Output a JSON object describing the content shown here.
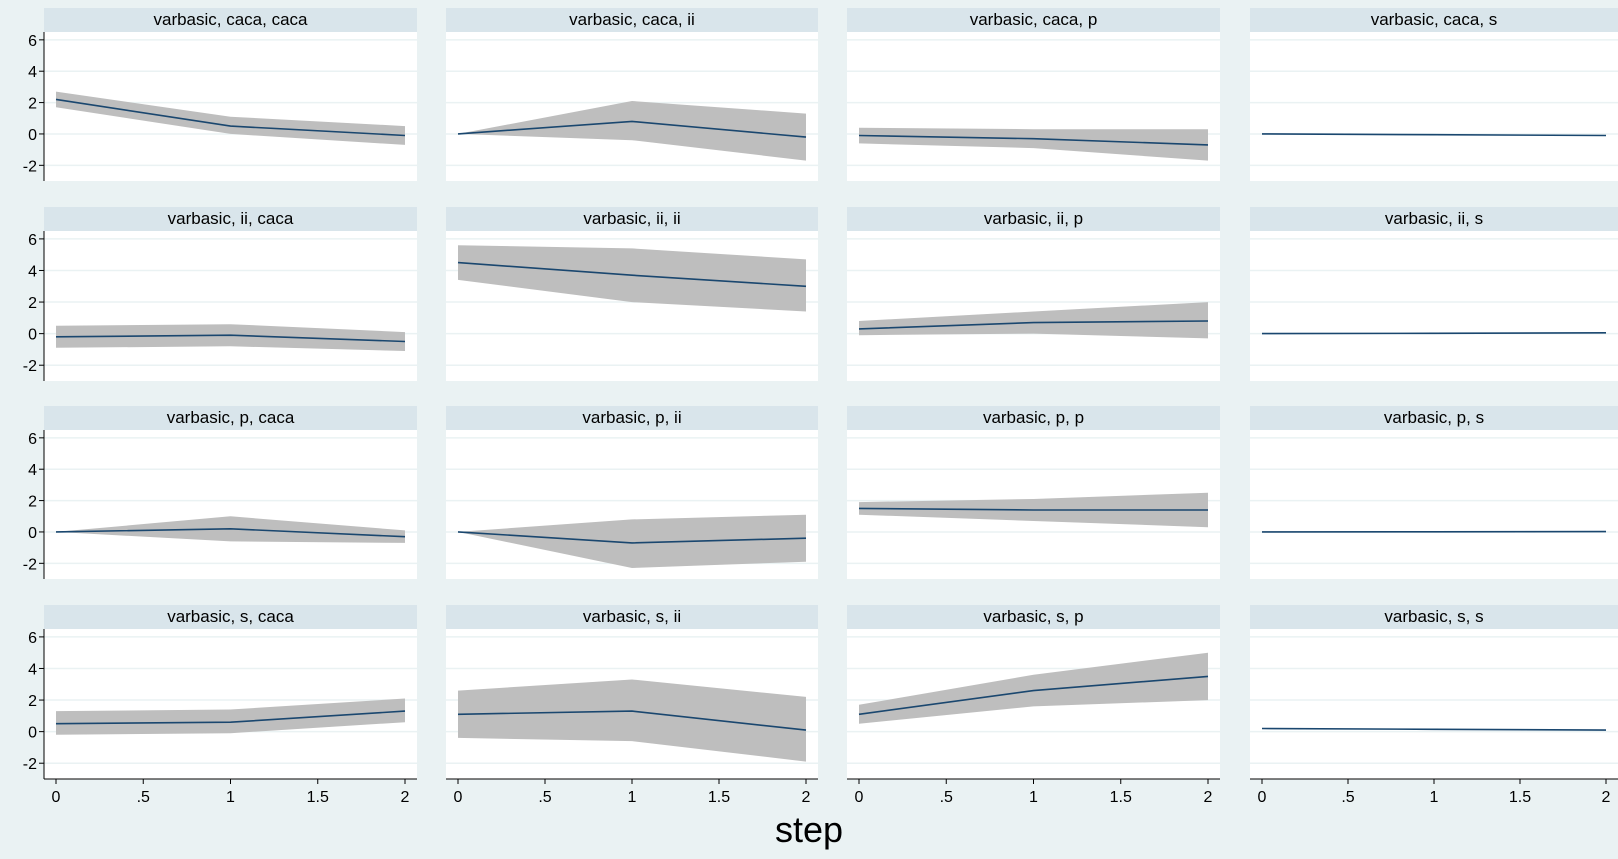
{
  "figure": {
    "x_axis_title": "step",
    "colors": {
      "background": "#eaf2f3",
      "panel": "#ffffff",
      "strip": "#d9e5eb",
      "ci_band": "#bebebe",
      "line": "#1a476f",
      "grid": "#eaf2f3"
    }
  },
  "chart_data": {
    "type": "line",
    "layout": "4x4 panel grid (impulse, response)",
    "x_ticks": [
      "0",
      ".5",
      "1",
      "1.5",
      "2"
    ],
    "y_ticks": [
      "-2",
      "0",
      "2",
      "4",
      "6"
    ],
    "xlim": [
      0,
      2
    ],
    "ylim": [
      -3,
      6.5
    ],
    "grid": true,
    "x": [
      0,
      1,
      2
    ],
    "panels": [
      {
        "title": "varbasic, caca, caca",
        "irf": [
          2.2,
          0.5,
          -0.1
        ],
        "lower": [
          1.7,
          0.0,
          -0.7
        ],
        "upper": [
          2.7,
          1.1,
          0.5
        ]
      },
      {
        "title": "varbasic, caca, ii",
        "irf": [
          0,
          0.8,
          -0.2
        ],
        "lower": [
          0,
          -0.4,
          -1.7
        ],
        "upper": [
          0,
          2.1,
          1.3
        ]
      },
      {
        "title": "varbasic, caca, p",
        "irf": [
          -0.1,
          -0.3,
          -0.7
        ],
        "lower": [
          -0.6,
          -0.9,
          -1.7
        ],
        "upper": [
          0.4,
          0.3,
          0.3
        ]
      },
      {
        "title": "varbasic, caca, s",
        "irf": [
          0,
          -0.05,
          -0.1
        ],
        "lower": [
          -0.02,
          -0.07,
          -0.12
        ],
        "upper": [
          0.02,
          -0.03,
          -0.08
        ]
      },
      {
        "title": "varbasic, ii, caca",
        "irf": [
          -0.2,
          -0.1,
          -0.5
        ],
        "lower": [
          -0.9,
          -0.8,
          -1.1
        ],
        "upper": [
          0.5,
          0.6,
          0.1
        ]
      },
      {
        "title": "varbasic, ii, ii",
        "irf": [
          4.5,
          3.7,
          3.0
        ],
        "lower": [
          3.4,
          2.0,
          1.4
        ],
        "upper": [
          5.6,
          5.4,
          4.7
        ]
      },
      {
        "title": "varbasic, ii, p",
        "irf": [
          0.3,
          0.7,
          0.8
        ],
        "lower": [
          -0.1,
          0.0,
          -0.3
        ],
        "upper": [
          0.8,
          1.4,
          2.0
        ]
      },
      {
        "title": "varbasic, ii, s",
        "irf": [
          0,
          0.02,
          0.05
        ],
        "lower": [
          -0.02,
          0,
          0.03
        ],
        "upper": [
          0.02,
          0.04,
          0.07
        ]
      },
      {
        "title": "varbasic, p, caca",
        "irf": [
          0,
          0.2,
          -0.3
        ],
        "lower": [
          0,
          -0.6,
          -0.7
        ],
        "upper": [
          0,
          1.0,
          0.1
        ]
      },
      {
        "title": "varbasic, p, ii",
        "irf": [
          0,
          -0.7,
          -0.4
        ],
        "lower": [
          0,
          -2.3,
          -1.9
        ],
        "upper": [
          0,
          0.8,
          1.1
        ]
      },
      {
        "title": "varbasic, p, p",
        "irf": [
          1.5,
          1.4,
          1.4
        ],
        "lower": [
          1.1,
          0.7,
          0.3
        ],
        "upper": [
          1.9,
          2.1,
          2.5
        ]
      },
      {
        "title": "varbasic, p, s",
        "irf": [
          0,
          0.01,
          0.02
        ],
        "lower": [
          -0.02,
          -0.01,
          0
        ],
        "upper": [
          0.02,
          0.03,
          0.04
        ]
      },
      {
        "title": "varbasic, s, caca",
        "irf": [
          0.5,
          0.6,
          1.3
        ],
        "lower": [
          -0.2,
          -0.1,
          0.6
        ],
        "upper": [
          1.3,
          1.4,
          2.1
        ]
      },
      {
        "title": "varbasic, s, ii",
        "irf": [
          1.1,
          1.3,
          0.1
        ],
        "lower": [
          -0.4,
          -0.6,
          -1.9
        ],
        "upper": [
          2.6,
          3.3,
          2.2
        ]
      },
      {
        "title": "varbasic, s, p",
        "irf": [
          1.1,
          2.6,
          3.5
        ],
        "lower": [
          0.5,
          1.6,
          2.0
        ],
        "upper": [
          1.7,
          3.6,
          5.0
        ]
      },
      {
        "title": "varbasic, s, s",
        "irf": [
          0.2,
          0.15,
          0.1
        ],
        "lower": [
          0.18,
          0.13,
          0.08
        ],
        "upper": [
          0.22,
          0.17,
          0.12
        ]
      }
    ]
  }
}
